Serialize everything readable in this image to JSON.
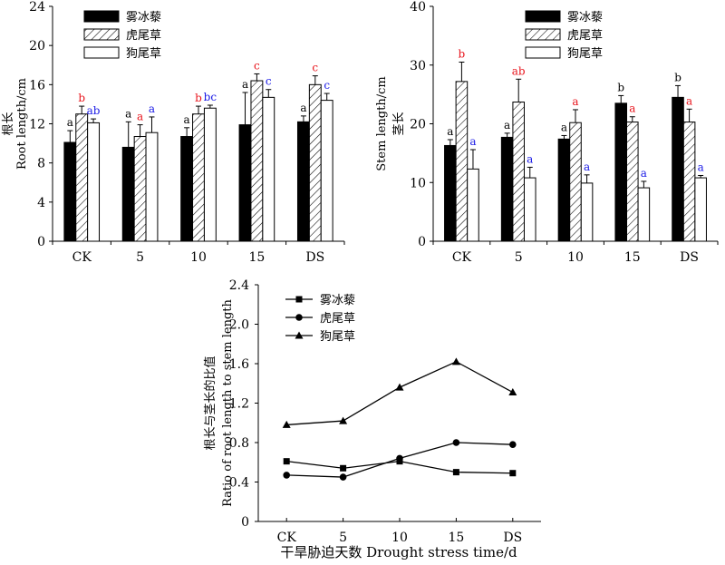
{
  "chart_data": [
    {
      "id": "root",
      "type": "bar",
      "categories": [
        "CK",
        "5",
        "10",
        "15",
        "DS"
      ],
      "ylabel_cn": "根长",
      "ylabel_en": "Root length/cm",
      "ylim": [
        0,
        24
      ],
      "yticks": [
        0,
        4,
        8,
        12,
        16,
        20,
        24
      ],
      "legend_position": "top-right",
      "series": [
        {
          "name": "雾冰藜",
          "values": [
            10.1,
            9.6,
            10.7,
            11.9,
            12.2
          ],
          "errors": [
            1.2,
            2.6,
            0.9,
            3.3,
            0.6
          ],
          "labels": [
            "a",
            "a",
            "a",
            "a",
            "a"
          ],
          "label_colors": [
            "#000000",
            "#000000",
            "#000000",
            "#000000",
            "#000000"
          ]
        },
        {
          "name": "虎尾草",
          "values": [
            13.0,
            10.7,
            13.0,
            16.4,
            16.0
          ],
          "errors": [
            0.8,
            1.2,
            0.8,
            0.7,
            0.9
          ],
          "labels": [
            "b",
            "a",
            "b",
            "c",
            "c"
          ],
          "label_colors": [
            "#e8141c",
            "#e8141c",
            "#e8141c",
            "#e8141c",
            "#e8141c"
          ]
        },
        {
          "name": "狗尾草",
          "values": [
            12.1,
            11.1,
            13.6,
            14.7,
            14.4
          ],
          "errors": [
            0.4,
            1.6,
            0.3,
            0.8,
            0.7
          ],
          "labels": [
            "ab",
            "a",
            "bc",
            "c",
            "c"
          ],
          "label_colors": [
            "#1a1ae6",
            "#1a1ae6",
            "#1a1ae6",
            "#1a1ae6",
            "#1a1ae6"
          ]
        }
      ]
    },
    {
      "id": "stem",
      "type": "bar",
      "categories": [
        "CK",
        "5",
        "10",
        "15",
        "DS"
      ],
      "ylabel_cn": "茎长",
      "ylabel_en": "Stem length/cm",
      "ylim": [
        0,
        40
      ],
      "yticks": [
        0,
        10,
        20,
        30,
        40
      ],
      "legend_position": "top-right",
      "series": [
        {
          "name": "雾冰藜",
          "values": [
            16.3,
            17.7,
            17.4,
            23.5,
            24.5
          ],
          "errors": [
            1.0,
            0.7,
            0.6,
            1.3,
            2.0
          ],
          "labels": [
            "a",
            "a",
            "a",
            "b",
            "b"
          ],
          "label_colors": [
            "#000000",
            "#000000",
            "#000000",
            "#000000",
            "#000000"
          ]
        },
        {
          "name": "虎尾草",
          "values": [
            27.2,
            23.7,
            20.2,
            20.3,
            20.3
          ],
          "errors": [
            3.3,
            3.9,
            2.2,
            0.9,
            2.2
          ],
          "labels": [
            "b",
            "ab",
            "a",
            "a",
            "a"
          ],
          "label_colors": [
            "#e8141c",
            "#e8141c",
            "#e8141c",
            "#e8141c",
            "#e8141c"
          ]
        },
        {
          "name": "狗尾草",
          "values": [
            12.3,
            10.8,
            9.9,
            9.1,
            10.8
          ],
          "errors": [
            3.3,
            1.8,
            1.4,
            1.1,
            0.4
          ],
          "labels": [
            "a",
            "a",
            "a",
            "a",
            "a"
          ],
          "label_colors": [
            "#1a1ae6",
            "#1a1ae6",
            "#1a1ae6",
            "#1a1ae6",
            "#1a1ae6"
          ]
        }
      ]
    },
    {
      "id": "ratio",
      "type": "line",
      "categories": [
        "CK",
        "5",
        "10",
        "15",
        "DS"
      ],
      "ylabel_cn": "根长与茎长的比值",
      "ylabel_en": "Ratio of root length to stem length",
      "ylim": [
        0,
        2.4
      ],
      "yticks": [
        "0",
        "0.4",
        "0.8",
        "1.2",
        "1.6",
        "2.0",
        "2.4"
      ],
      "xlabel": "干旱胁迫天数  Drought stress time/d",
      "legend_position": "top-left",
      "series": [
        {
          "name": "雾冰藜",
          "marker": "square",
          "values": [
            0.61,
            0.54,
            0.61,
            0.5,
            0.49
          ]
        },
        {
          "name": "虎尾草",
          "marker": "circle",
          "values": [
            0.47,
            0.45,
            0.64,
            0.8,
            0.78
          ]
        },
        {
          "name": "狗尾草",
          "marker": "triangle",
          "values": [
            0.98,
            1.02,
            1.36,
            1.62,
            1.31
          ]
        }
      ]
    }
  ]
}
